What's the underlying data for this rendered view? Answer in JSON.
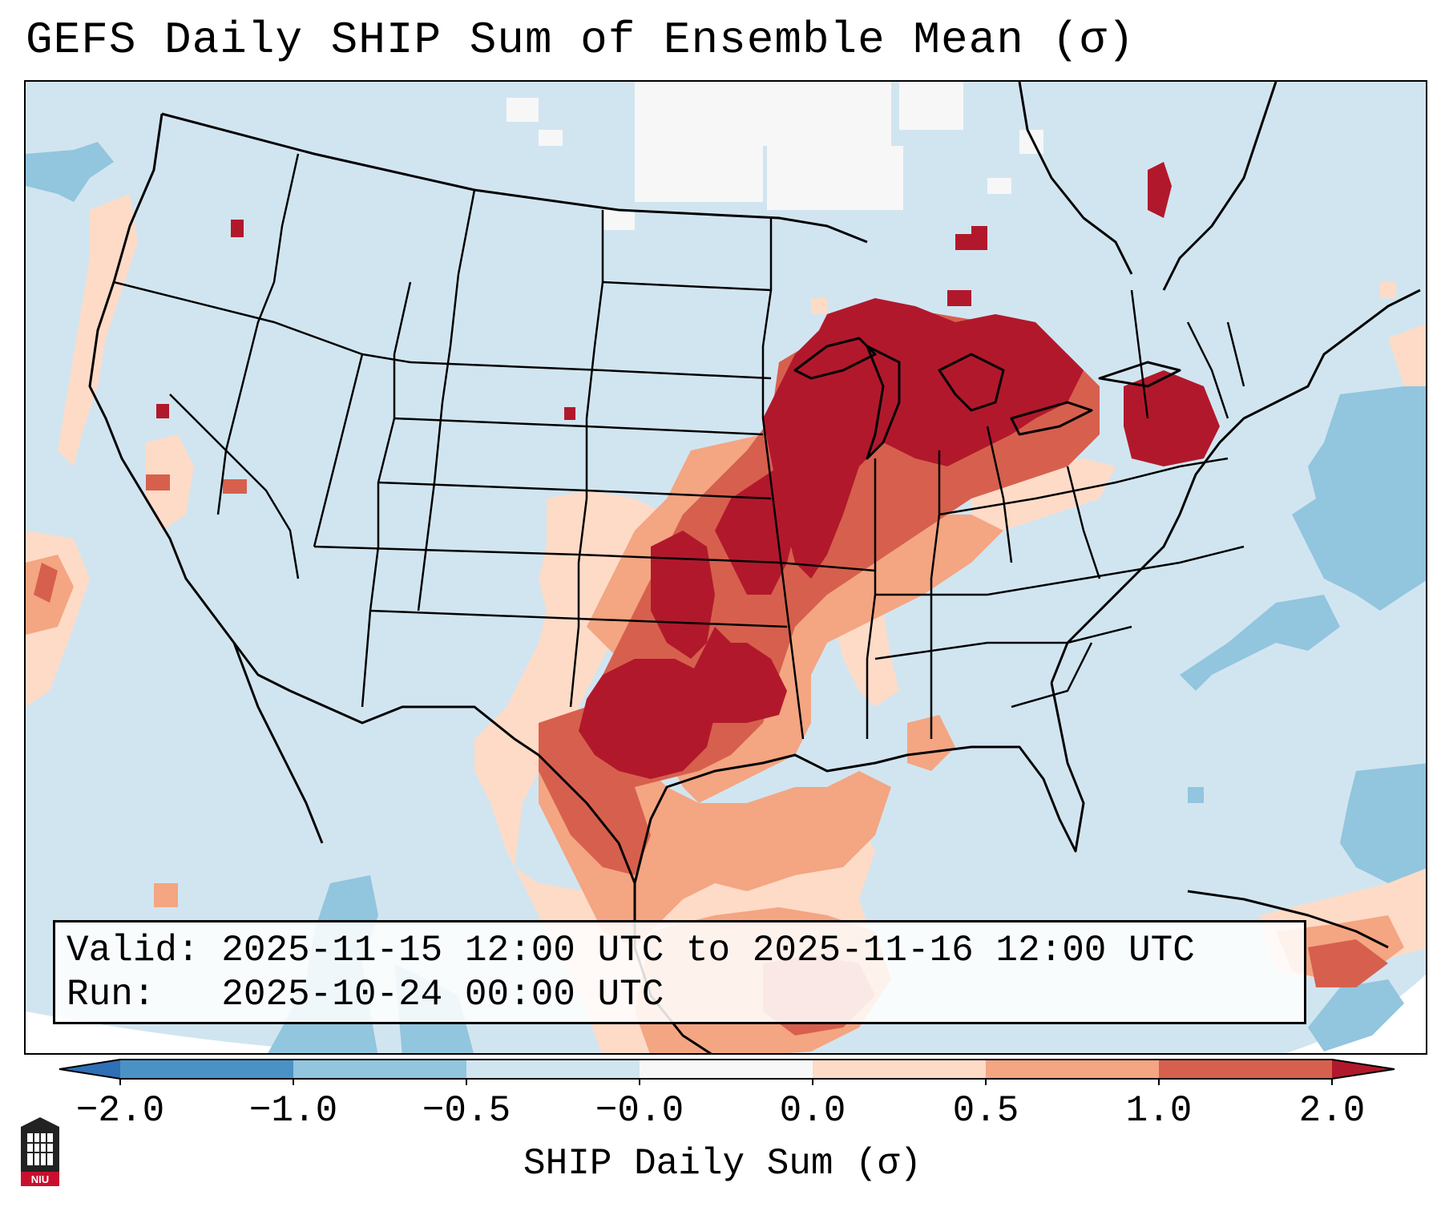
{
  "title": "GEFS Daily SHIP Sum of Ensemble Mean (σ)",
  "info": {
    "valid_line": "Valid: 2025-11-15 12:00 UTC to 2025-11-16 12:00 UTC",
    "run_line": "Run:   2025-10-24 00:00 UTC"
  },
  "colorbar": {
    "label": "SHIP Daily Sum (σ)",
    "ticks": [
      "−2.0",
      "−1.0",
      "−0.5",
      "−0.0",
      "0.0",
      "0.5",
      "1.0",
      "2.0"
    ],
    "bins": [
      {
        "range": "< -2.0",
        "color": "#2f6fb5"
      },
      {
        "range": "-2.0 to -1.0",
        "color": "#4a92c6"
      },
      {
        "range": "-1.0 to -0.5",
        "color": "#92c5de"
      },
      {
        "range": "-0.5 to -0.0",
        "color": "#d1e5f0"
      },
      {
        "range": "-0.0 to 0.0",
        "color": "#f7f7f7"
      },
      {
        "range": "0.0 to 0.5",
        "color": "#fddbc7"
      },
      {
        "range": "0.5 to 1.0",
        "color": "#f4a582"
      },
      {
        "range": "1.0 to 2.0",
        "color": "#d6604d"
      },
      {
        "range": "> 2.0",
        "color": "#b2182b"
      }
    ]
  },
  "colors": {
    "light_blue": "#d1e5f0",
    "mid_blue": "#92c5de",
    "light_red": "#fddbc7",
    "salmon": "#f4a582",
    "red": "#d6604d",
    "dark_red": "#b2182b"
  },
  "logo": {
    "text": "NIU"
  }
}
